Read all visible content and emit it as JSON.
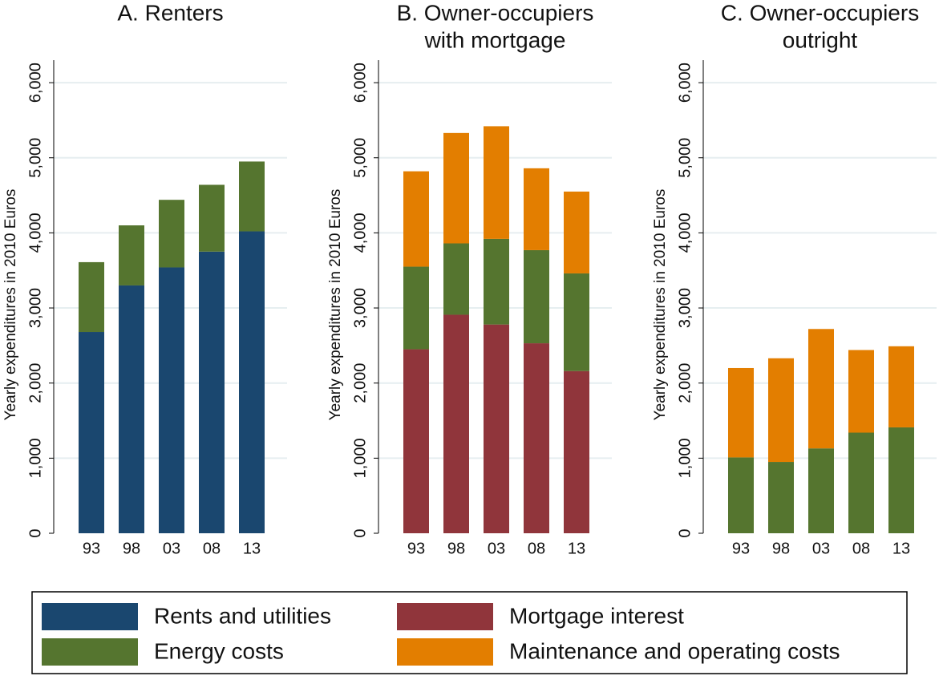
{
  "chart_data": [
    {
      "type": "stacked_bar",
      "title": [
        "A. Renters"
      ],
      "y_label": "Yearly expenditures in 2010 Euros",
      "categories": [
        "93",
        "98",
        "03",
        "08",
        "13"
      ],
      "series": [
        {
          "name": "Rents and utilities",
          "color": "#1a476f",
          "values": [
            2680,
            3300,
            3540,
            3750,
            4020
          ]
        },
        {
          "name": "Energy costs",
          "color": "#55752f",
          "values": [
            930,
            800,
            900,
            890,
            930
          ]
        }
      ],
      "ylim": [
        0,
        6300
      ],
      "yticks": [
        0,
        {
          "value": 1000,
          "label": "1,000"
        },
        {
          "value": 2000,
          "label": "2,000"
        },
        {
          "value": 3000,
          "label": "3,000"
        },
        {
          "value": 4000,
          "label": "4,000"
        },
        {
          "value": 5000,
          "label": "5,000"
        },
        {
          "value": 6000,
          "label": "6,000"
        }
      ],
      "grid": true
    },
    {
      "type": "stacked_bar",
      "title": [
        "B. Owner-occupiers",
        "with mortgage"
      ],
      "y_label": "Yearly expenditures in 2010 Euros",
      "categories": [
        "93",
        "98",
        "03",
        "08",
        "13"
      ],
      "series": [
        {
          "name": "Mortgage interest",
          "color": "#90353b",
          "values": [
            2450,
            2910,
            2780,
            2530,
            2160
          ]
        },
        {
          "name": "Energy costs",
          "color": "#55752f",
          "values": [
            1100,
            950,
            1140,
            1240,
            1300
          ]
        },
        {
          "name": "Maintenance and operating costs",
          "color": "#e37e00",
          "values": [
            1270,
            1470,
            1500,
            1090,
            1090
          ]
        }
      ],
      "ylim": [
        0,
        6300
      ],
      "yticks": [
        0,
        {
          "value": 1000,
          "label": "1,000"
        },
        {
          "value": 2000,
          "label": "2,000"
        },
        {
          "value": 3000,
          "label": "3,000"
        },
        {
          "value": 4000,
          "label": "4,000"
        },
        {
          "value": 5000,
          "label": "5,000"
        },
        {
          "value": 6000,
          "label": "6,000"
        }
      ],
      "grid": true
    },
    {
      "type": "stacked_bar",
      "title": [
        "C. Owner-occupiers",
        "outright"
      ],
      "y_label": "Yearly expenditures in 2010 Euros",
      "categories": [
        "93",
        "98",
        "03",
        "08",
        "13"
      ],
      "series": [
        {
          "name": "Energy costs",
          "color": "#55752f",
          "values": [
            1010,
            950,
            1130,
            1340,
            1410
          ]
        },
        {
          "name": "Maintenance and operating costs",
          "color": "#e37e00",
          "values": [
            1190,
            1380,
            1590,
            1100,
            1080
          ]
        }
      ],
      "ylim": [
        0,
        6300
      ],
      "yticks": [
        0,
        {
          "value": 1000,
          "label": "1,000"
        },
        {
          "value": 2000,
          "label": "2,000"
        },
        {
          "value": 3000,
          "label": "3,000"
        },
        {
          "value": 4000,
          "label": "4,000"
        },
        {
          "value": 5000,
          "label": "5,000"
        },
        {
          "value": 6000,
          "label": "6,000"
        }
      ],
      "grid": true
    }
  ]
}
